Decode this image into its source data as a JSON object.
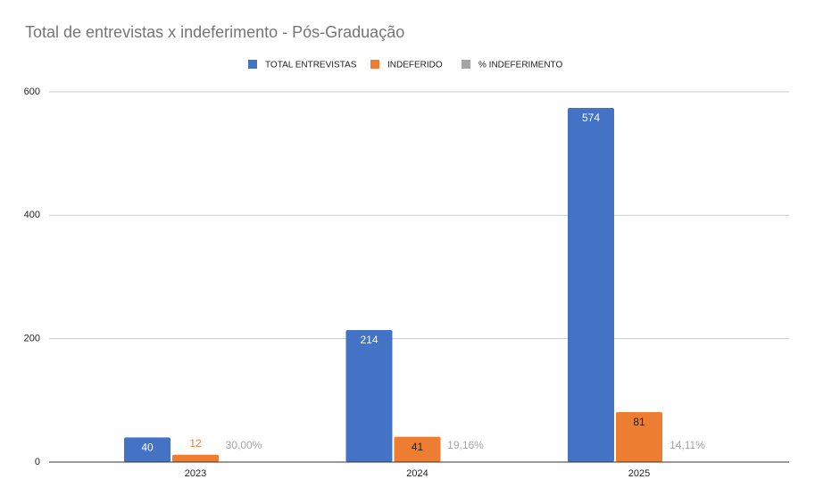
{
  "chart_data": {
    "type": "bar",
    "title": "Total de entrevistas x indeferimento - Pós-Graduação",
    "categories": [
      "2023",
      "2024",
      "2025"
    ],
    "series": [
      {
        "name": "TOTAL ENTREVISTAS",
        "color": "#4472c4",
        "values": [
          40,
          214,
          574
        ]
      },
      {
        "name": "INDEFERIDO",
        "color": "#ed7d31",
        "values": [
          12,
          41,
          81
        ]
      },
      {
        "name": "% INDEFERIMENTO",
        "color": "#a5a5a5",
        "values": [
          0.3,
          0.1916,
          0.1411
        ],
        "value_labels": [
          "30,00%",
          "19,16%",
          "14,11%"
        ]
      }
    ],
    "ylim": [
      0,
      600
    ],
    "yticks": [
      0,
      200,
      400,
      600
    ],
    "grid": true,
    "legend": "top"
  }
}
